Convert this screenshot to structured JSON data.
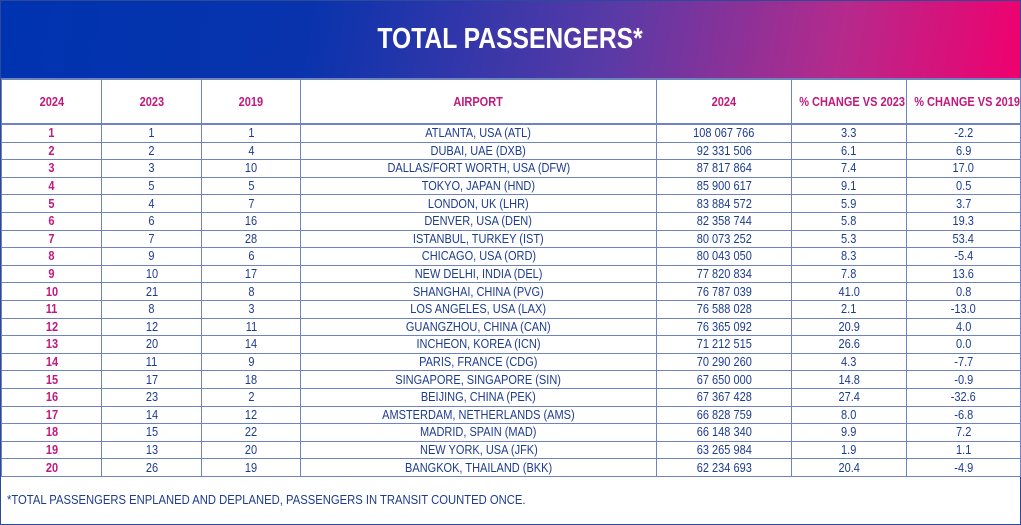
{
  "title": "TOTAL PASSENGERS*",
  "colors": {
    "header_text": "#c0197f",
    "body_text": "#1d3c8f",
    "gradient_start": "#0033b0",
    "gradient_end": "#f0006e"
  },
  "columns": [
    "2024",
    "2023",
    "2019",
    "AIRPORT",
    "2024",
    "% CHANGE VS 2023",
    "% CHANGE VS 2019"
  ],
  "rows": [
    [
      "1",
      "1",
      "1",
      "ATLANTA, USA (ATL)",
      "108 067 766",
      "3.3",
      "-2.2"
    ],
    [
      "2",
      "2",
      "4",
      "DUBAI, UAE (DXB)",
      "92 331 506",
      "6.1",
      "6.9"
    ],
    [
      "3",
      "3",
      "10",
      "DALLAS/FORT WORTH, USA (DFW)",
      "87 817 864",
      "7.4",
      "17.0"
    ],
    [
      "4",
      "5",
      "5",
      "TOKYO, JAPAN (HND)",
      "85 900 617",
      "9.1",
      "0.5"
    ],
    [
      "5",
      "4",
      "7",
      "LONDON, UK (LHR)",
      "83 884 572",
      "5.9",
      "3.7"
    ],
    [
      "6",
      "6",
      "16",
      "DENVER, USA (DEN)",
      "82 358 744",
      "5.8",
      "19.3"
    ],
    [
      "7",
      "7",
      "28",
      "ISTANBUL, TURKEY (IST)",
      "80 073 252",
      "5.3",
      "53.4"
    ],
    [
      "8",
      "9",
      "6",
      "CHICAGO, USA (ORD)",
      "80 043 050",
      "8.3",
      "-5.4"
    ],
    [
      "9",
      "10",
      "17",
      "NEW DELHI, INDIA (DEL)",
      "77 820 834",
      "7.8",
      "13.6"
    ],
    [
      "10",
      "21",
      "8",
      "SHANGHAI, CHINA (PVG)",
      "76 787 039",
      "41.0",
      "0.8"
    ],
    [
      "11",
      "8",
      "3",
      "LOS ANGELES, USA (LAX)",
      "76 588 028",
      "2.1",
      "-13.0"
    ],
    [
      "12",
      "12",
      "11",
      "GUANGZHOU, CHINA (CAN)",
      "76 365 092",
      "20.9",
      "4.0"
    ],
    [
      "13",
      "20",
      "14",
      "INCHEON, KOREA (ICN)",
      "71 212 515",
      "26.6",
      "0.0"
    ],
    [
      "14",
      "11",
      "9",
      "PARIS, FRANCE (CDG)",
      "70 290 260",
      "4.3",
      "-7.7"
    ],
    [
      "15",
      "17",
      "18",
      "SINGAPORE, SINGAPORE (SIN)",
      "67 650 000",
      "14.8",
      "-0.9"
    ],
    [
      "16",
      "23",
      "2",
      "BEIJING, CHINA (PEK)",
      "67 367 428",
      "27.4",
      "-32.6"
    ],
    [
      "17",
      "14",
      "12",
      "AMSTERDAM, NETHERLANDS (AMS)",
      "66 828 759",
      "8.0",
      "-6.8"
    ],
    [
      "18",
      "15",
      "22",
      "MADRID, SPAIN (MAD)",
      "66 148 340",
      "9.9",
      "7.2"
    ],
    [
      "19",
      "13",
      "20",
      "NEW YORK, USA (JFK)",
      "63 265 984",
      "1.9",
      "1.1"
    ],
    [
      "20",
      "26",
      "19",
      "BANGKOK, THAILAND (BKK)",
      "62 234 693",
      "20.4",
      "-4.9"
    ]
  ],
  "footnote": "*TOTAL PASSENGERS ENPLANED AND DEPLANED, PASSENGERS IN TRANSIT COUNTED ONCE."
}
